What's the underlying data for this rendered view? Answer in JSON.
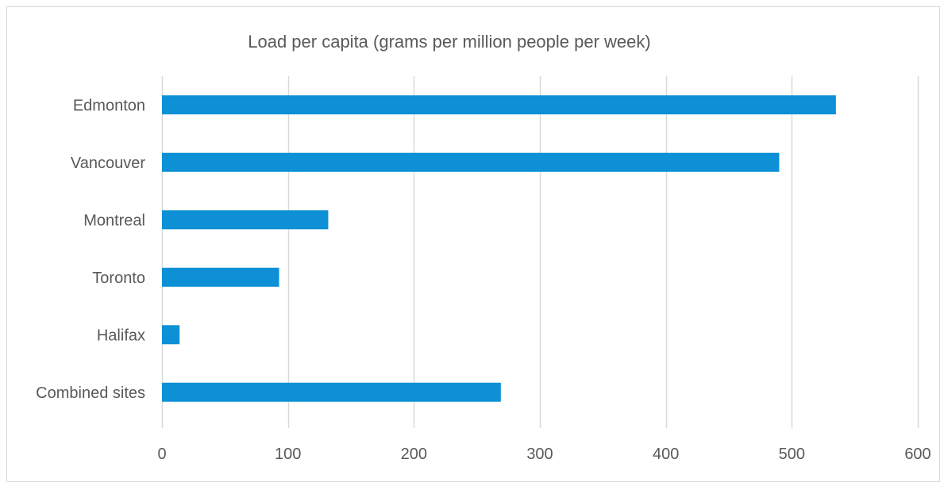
{
  "chart_data": {
    "type": "bar",
    "orientation": "horizontal",
    "title": "Load per capita (grams per million people per week)",
    "categories": [
      "Edmonton",
      "Vancouver",
      "Montreal",
      "Toronto",
      "Halifax",
      "Combined sites"
    ],
    "values": [
      535,
      490,
      132,
      93,
      14,
      269
    ],
    "xlim": [
      0,
      600
    ],
    "x_ticks": [
      "0",
      "100",
      "200",
      "300",
      "400",
      "500",
      "600"
    ],
    "grid": true,
    "legend": "none",
    "bar_color": "#0d90d6"
  }
}
